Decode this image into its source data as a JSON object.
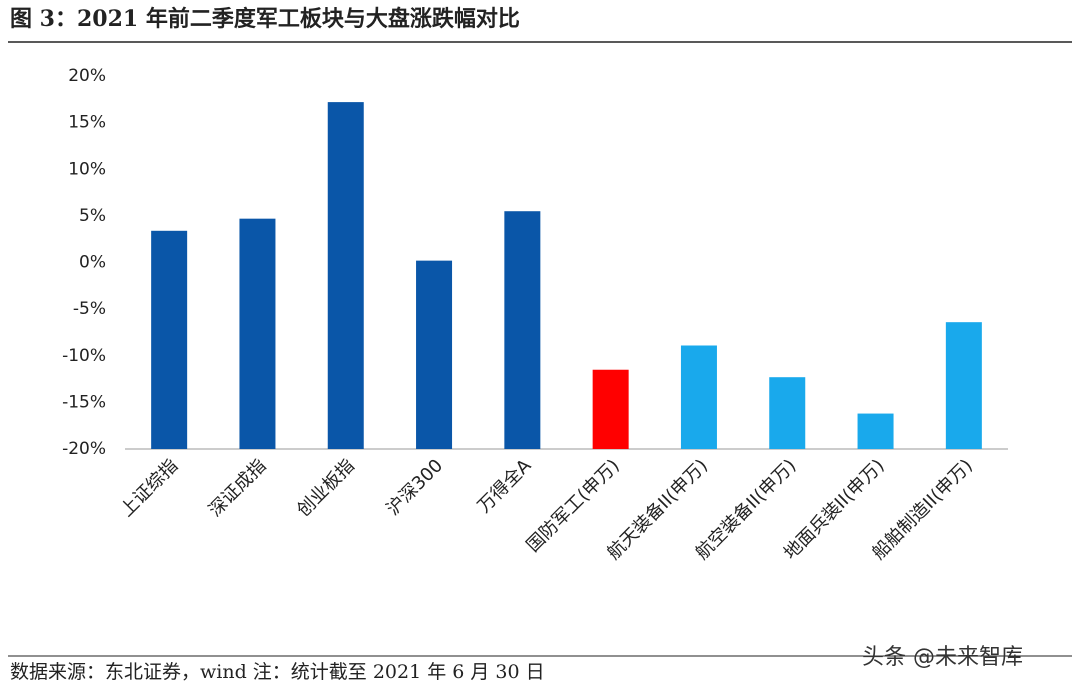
{
  "chart_data": {
    "type": "bar",
    "title": "图 3：2021 年前二季度军工板块与大盘涨跌幅对比",
    "source": "数据来源：东北证券，wind   注：统计截至 2021 年 6 月 30 日",
    "watermark": "头条 @未来智库",
    "categories": [
      "上证综指",
      "深证成指",
      "创业板指",
      "沪深300",
      "万得全A",
      "国防军工(申万)",
      "航天装备II(申万)",
      "航空装备II(申万)",
      "地面兵装II(申万)",
      "船舶制造II(申万)"
    ],
    "values": [
      3.4,
      4.7,
      17.2,
      0.2,
      5.5,
      -11.5,
      -8.9,
      -12.3,
      -16.2,
      -6.4
    ],
    "colors": [
      "#0a56a8",
      "#0a56a8",
      "#0a56a8",
      "#0a56a8",
      "#0a56a8",
      "#ff0000",
      "#19a9ec",
      "#19a9ec",
      "#19a9ec",
      "#19a9ec"
    ],
    "ylim": [
      -20,
      20
    ],
    "yticks": [
      {
        "value": -20,
        "label": "-20%"
      },
      {
        "value": -15,
        "label": "-15%"
      },
      {
        "value": -10,
        "label": "-10%"
      },
      {
        "value": -5,
        "label": "-5%"
      },
      {
        "value": 0,
        "label": "0%"
      },
      {
        "value": 5,
        "label": "5%"
      },
      {
        "value": 10,
        "label": "10%"
      },
      {
        "value": 15,
        "label": "15%"
      },
      {
        "value": 20,
        "label": "20%"
      }
    ],
    "grid": false
  }
}
